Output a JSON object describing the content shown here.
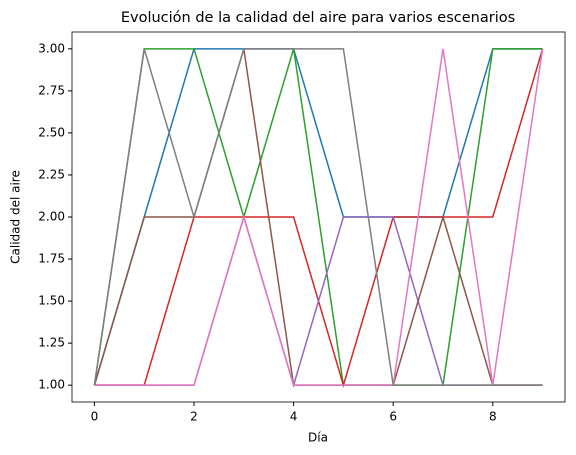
{
  "chart_data": {
    "type": "line",
    "title": "Evolución de la calidad del aire para varios escenarios",
    "xlabel": "Día",
    "ylabel": "Calidad del aire",
    "x": [
      0,
      1,
      2,
      3,
      4,
      5,
      6,
      7,
      8,
      9
    ],
    "series": [
      {
        "color": "#1f77b4",
        "values": [
          1,
          2,
          3,
          3,
          3,
          2,
          2,
          2,
          3,
          3
        ]
      },
      {
        "color": "#2ca02c",
        "values": [
          1,
          3,
          3,
          2,
          3,
          1,
          1,
          1,
          3,
          3
        ]
      },
      {
        "color": "#d62728",
        "values": [
          1,
          1,
          2,
          2,
          2,
          1,
          2,
          2,
          2,
          3
        ]
      },
      {
        "color": "#9467bd",
        "values": [
          1,
          1,
          1,
          2,
          1,
          2,
          2,
          1,
          1,
          1
        ]
      },
      {
        "color": "#8c564b",
        "values": [
          1,
          2,
          2,
          3,
          1,
          1,
          1,
          2,
          1,
          1
        ]
      },
      {
        "color": "#e377c2",
        "values": [
          1,
          1,
          1,
          2,
          1,
          1,
          1,
          3,
          1,
          3
        ]
      },
      {
        "color": "#7f7f7f",
        "values": [
          1,
          3,
          2,
          3,
          3,
          3,
          1,
          1,
          1,
          1
        ]
      }
    ],
    "xlim": [
      -0.45,
      9.45
    ],
    "xticks": [
      0,
      2,
      4,
      6,
      8
    ],
    "ylim": [
      0.9,
      3.1
    ],
    "yticks": [
      {
        "value": 1,
        "label": "1.00"
      },
      {
        "value": 1.25,
        "label": "1.25"
      },
      {
        "value": 1.5,
        "label": "1.50"
      },
      {
        "value": 1.75,
        "label": "1.75"
      },
      {
        "value": 2,
        "label": "2.00"
      },
      {
        "value": 2.25,
        "label": "2.25"
      },
      {
        "value": 2.5,
        "label": "2.50"
      },
      {
        "value": 2.75,
        "label": "2.75"
      },
      {
        "value": 3,
        "label": "3.00"
      }
    ]
  }
}
